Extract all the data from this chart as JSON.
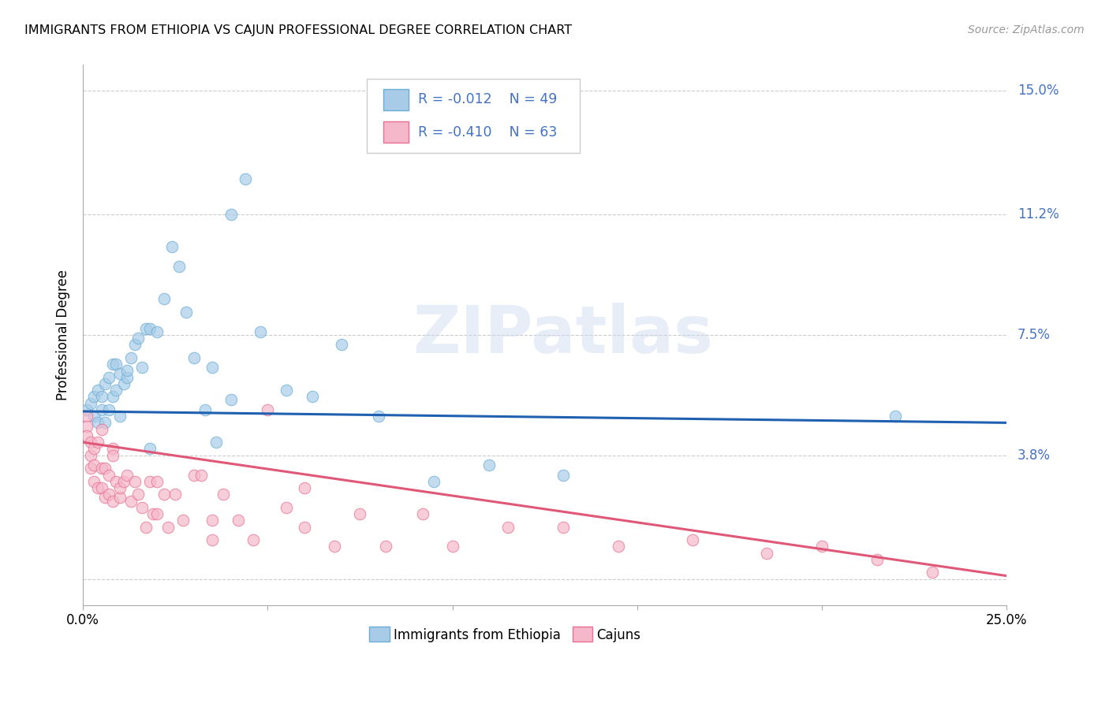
{
  "title": "IMMIGRANTS FROM ETHIOPIA VS CAJUN PROFESSIONAL DEGREE CORRELATION CHART",
  "source": "Source: ZipAtlas.com",
  "ylabel": "Professional Degree",
  "xlim": [
    0.0,
    0.25
  ],
  "ylim": [
    -0.008,
    0.158
  ],
  "ylabel_vals": [
    0.0,
    0.038,
    0.075,
    0.112,
    0.15
  ],
  "ylabel_labels": [
    "",
    "3.8%",
    "7.5%",
    "11.2%",
    "15.0%"
  ],
  "xtick_positions": [
    0.0,
    0.05,
    0.1,
    0.15,
    0.2,
    0.25
  ],
  "xtick_labels": [
    "0.0%",
    "",
    "",
    "",
    "",
    "25.0%"
  ],
  "watermark_text": "ZIPatlas",
  "blue_color": "#a8cce8",
  "pink_color": "#f5b8cb",
  "blue_edge_color": "#6aadd5",
  "pink_edge_color": "#e87090",
  "blue_line_color": "#2060b0",
  "pink_line_color": "#e05878",
  "axis_label_color": "#4472c4",
  "legend_R1": "-0.012",
  "legend_N1": "49",
  "legend_R2": "-0.410",
  "legend_N2": "63",
  "legend_label1": "Immigrants from Ethiopia",
  "legend_label2": "Cajuns",
  "scatter_size": 110,
  "scatter_alpha": 0.7,
  "blue_trend_x": [
    0.0,
    0.25
  ],
  "blue_trend_y": [
    0.0515,
    0.048
  ],
  "pink_trend_x": [
    0.0,
    0.25
  ],
  "pink_trend_y": [
    0.042,
    0.001
  ],
  "blue_x": [
    0.001,
    0.002,
    0.003,
    0.003,
    0.004,
    0.004,
    0.005,
    0.005,
    0.006,
    0.006,
    0.007,
    0.007,
    0.008,
    0.008,
    0.009,
    0.009,
    0.01,
    0.01,
    0.011,
    0.012,
    0.012,
    0.013,
    0.014,
    0.015,
    0.016,
    0.017,
    0.018,
    0.02,
    0.022,
    0.024,
    0.026,
    0.028,
    0.03,
    0.033,
    0.036,
    0.04,
    0.044,
    0.048,
    0.055,
    0.062,
    0.07,
    0.08,
    0.095,
    0.11,
    0.13,
    0.04,
    0.035,
    0.018,
    0.22
  ],
  "blue_y": [
    0.052,
    0.054,
    0.056,
    0.05,
    0.058,
    0.048,
    0.056,
    0.052,
    0.06,
    0.048,
    0.062,
    0.052,
    0.066,
    0.056,
    0.066,
    0.058,
    0.063,
    0.05,
    0.06,
    0.062,
    0.064,
    0.068,
    0.072,
    0.074,
    0.065,
    0.077,
    0.077,
    0.076,
    0.086,
    0.102,
    0.096,
    0.082,
    0.068,
    0.052,
    0.042,
    0.112,
    0.123,
    0.076,
    0.058,
    0.056,
    0.072,
    0.05,
    0.03,
    0.035,
    0.032,
    0.055,
    0.065,
    0.04,
    0.05
  ],
  "pink_x": [
    0.001,
    0.001,
    0.001,
    0.002,
    0.002,
    0.002,
    0.003,
    0.003,
    0.003,
    0.004,
    0.004,
    0.005,
    0.005,
    0.005,
    0.006,
    0.006,
    0.007,
    0.007,
    0.008,
    0.008,
    0.009,
    0.01,
    0.01,
    0.011,
    0.012,
    0.013,
    0.014,
    0.015,
    0.016,
    0.017,
    0.018,
    0.019,
    0.02,
    0.022,
    0.023,
    0.025,
    0.027,
    0.03,
    0.032,
    0.035,
    0.038,
    0.042,
    0.046,
    0.05,
    0.055,
    0.06,
    0.068,
    0.075,
    0.082,
    0.092,
    0.1,
    0.115,
    0.13,
    0.145,
    0.165,
    0.185,
    0.2,
    0.215,
    0.23,
    0.008,
    0.02,
    0.035,
    0.06
  ],
  "pink_y": [
    0.05,
    0.047,
    0.044,
    0.042,
    0.038,
    0.034,
    0.04,
    0.035,
    0.03,
    0.042,
    0.028,
    0.046,
    0.034,
    0.028,
    0.034,
    0.025,
    0.032,
    0.026,
    0.04,
    0.024,
    0.03,
    0.025,
    0.028,
    0.03,
    0.032,
    0.024,
    0.03,
    0.026,
    0.022,
    0.016,
    0.03,
    0.02,
    0.03,
    0.026,
    0.016,
    0.026,
    0.018,
    0.032,
    0.032,
    0.018,
    0.026,
    0.018,
    0.012,
    0.052,
    0.022,
    0.016,
    0.01,
    0.02,
    0.01,
    0.02,
    0.01,
    0.016,
    0.016,
    0.01,
    0.012,
    0.008,
    0.01,
    0.006,
    0.002,
    0.038,
    0.02,
    0.012,
    0.028
  ],
  "grid_color": "#cccccc",
  "spine_color": "#aaaaaa",
  "background_color": "#ffffff",
  "title_fontsize": 11.5,
  "source_fontsize": 10,
  "tick_fontsize": 12,
  "ylabel_fontsize": 12
}
